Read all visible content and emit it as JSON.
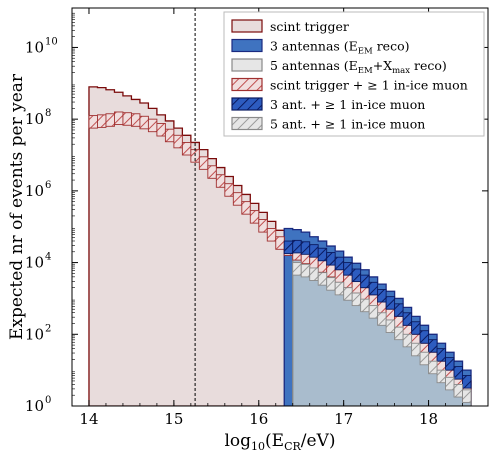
{
  "chart_data": {
    "type": "bar",
    "xlabel": "log10(ECR/eV)",
    "ylabel": "Expected nr of events per year",
    "xlim": [
      13.8,
      18.7
    ],
    "ylim_log10": [
      0,
      11.1
    ],
    "yscale": "log",
    "x_ticks": [
      {
        "v": 14,
        "label": "14"
      },
      {
        "v": 15,
        "label": "15"
      },
      {
        "v": 16,
        "label": "16"
      },
      {
        "v": 17,
        "label": "17"
      },
      {
        "v": 18,
        "label": "18"
      }
    ],
    "y_ticks": [
      {
        "exp": 0,
        "label": "10",
        "sup": "0"
      },
      {
        "exp": 2,
        "label": "10",
        "sup": "2"
      },
      {
        "exp": 4,
        "label": "10",
        "sup": "4"
      },
      {
        "exp": 6,
        "label": "10",
        "sup": "6"
      },
      {
        "exp": 8,
        "label": "10",
        "sup": "8"
      },
      {
        "exp": 10,
        "label": "10",
        "sup": "10"
      }
    ],
    "vline_x": 15.25,
    "bin_width": 0.1,
    "series": [
      {
        "name": "scint trigger",
        "style": "filled",
        "fill": "#e8dcdc",
        "stroke": "#7a0a0a",
        "x_start": 14.0,
        "log10_values": [
          8.9,
          8.88,
          8.82,
          8.75,
          8.65,
          8.55,
          8.45,
          8.3,
          8.12,
          7.95,
          7.75,
          7.55,
          7.35,
          7.15,
          6.9,
          6.65,
          6.4,
          6.15,
          5.9,
          5.65,
          5.4,
          5.15,
          4.9,
          4.75,
          4.62,
          4.5,
          4.4,
          4.28,
          4.15,
          4.0,
          3.85,
          3.7,
          3.5,
          3.3,
          3.1,
          2.9,
          2.7,
          2.45,
          2.2,
          1.95,
          1.7,
          1.45,
          1.2,
          0.95,
          0.7
        ]
      },
      {
        "name": "3 antennas (EEM reco)",
        "style": "filled",
        "fill": "#3f73c0",
        "stroke": "#1a2a80",
        "x_start": 16.3,
        "log10_values": [
          4.95,
          4.92,
          4.85,
          4.72,
          4.6,
          4.46,
          4.32,
          4.15,
          3.98,
          3.8,
          3.6,
          3.4,
          3.2,
          3.0,
          2.75,
          2.5,
          2.25,
          2.0,
          1.75,
          1.5,
          1.25,
          1.0
        ]
      },
      {
        "name": "5 antennas (EEM+Xmax reco)",
        "style": "filled",
        "fill": "#a9bccd",
        "stroke": "#888888",
        "x_start": 16.4,
        "log10_values": [
          4.35,
          4.2,
          4.05,
          3.9,
          3.75,
          3.6,
          3.45,
          3.3,
          3.12,
          2.95,
          2.75,
          2.55,
          2.35,
          2.15,
          1.9,
          1.65,
          1.4,
          1.15,
          0.9,
          0.7,
          0.55
        ]
      },
      {
        "name": "scint trigger + ≥1 in-ice muon",
        "style": "hatch",
        "fill": "#e8c8c8",
        "stroke": "#a03030",
        "x_start": 14.0,
        "log10_values": [
          8.1,
          8.12,
          8.15,
          8.2,
          8.18,
          8.15,
          8.08,
          8.0,
          7.88,
          7.72,
          7.55,
          7.35,
          7.15,
          6.95,
          6.7,
          6.45,
          6.2,
          5.95,
          5.7,
          5.45,
          5.2,
          4.95,
          4.72,
          4.55,
          4.42,
          4.32,
          4.2,
          4.08,
          3.95,
          3.8,
          3.65,
          3.5,
          3.3,
          3.1,
          2.9,
          2.7,
          2.5,
          2.25,
          2.0,
          1.75,
          1.5,
          1.25,
          1.0,
          0.75,
          0.5
        ]
      },
      {
        "name": "3 ant. + ≥1 in-ice muon",
        "style": "hatch",
        "fill": "#1f4fb0",
        "stroke": "#0a1a60",
        "x_start": 16.3,
        "log10_values": [
          4.6,
          4.62,
          4.58,
          4.5,
          4.4,
          4.28,
          4.15,
          4.0,
          3.82,
          3.65,
          3.45,
          3.25,
          3.05,
          2.85,
          2.6,
          2.35,
          2.1,
          1.85,
          1.6,
          1.35,
          1.1,
          0.85
        ]
      },
      {
        "name": "5 ant. + ≥1 in-ice muon",
        "style": "hatch",
        "fill": "#d9d9d9",
        "stroke": "#8a8a8a",
        "x_start": 16.4,
        "log10_values": [
          4.0,
          3.95,
          3.85,
          3.72,
          3.58,
          3.45,
          3.3,
          3.15,
          2.98,
          2.8,
          2.6,
          2.4,
          2.2,
          2.0,
          1.75,
          1.5,
          1.25,
          1.0,
          0.8,
          0.6,
          0.45
        ]
      }
    ],
    "legend": {
      "position": "top-right",
      "items": [
        {
          "text": "scint trigger",
          "sub": "",
          "tail": ""
        },
        {
          "text": "3 antennas (E",
          "sub": "EM",
          "tail": " reco)"
        },
        {
          "text": "5 antennas (E",
          "sub": "EM",
          "mid": "+X",
          "sub2": "max",
          "tail": " reco)"
        },
        {
          "text": "scint trigger + ≥ 1 in-ice muon",
          "sub": "",
          "tail": ""
        },
        {
          "text": "3 ant. + ≥ 1 in-ice muon",
          "sub": "",
          "tail": ""
        },
        {
          "text": "5 ant. + ≥ 1 in-ice muon",
          "sub": "",
          "tail": ""
        }
      ]
    },
    "xlabel_parts": {
      "pre": "log",
      "sub1": "10",
      "mid": "(E",
      "sub2": "CR",
      "post": "/eV)"
    }
  }
}
